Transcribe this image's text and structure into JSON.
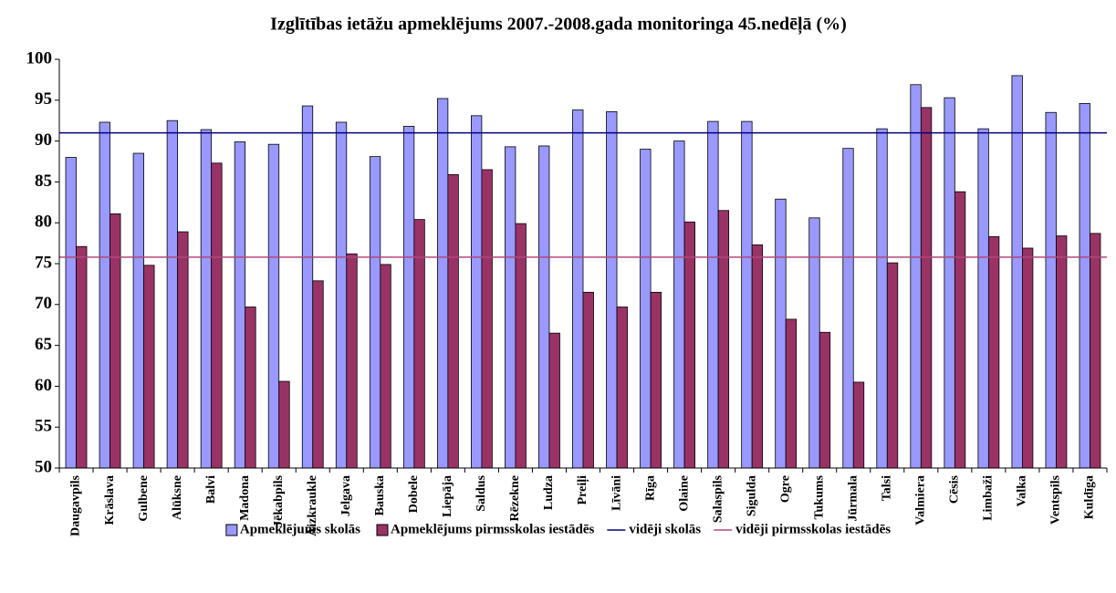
{
  "chart_data": {
    "type": "bar",
    "title": "Izglītības ietāžu apmeklējums 2007.-2008.gada monitoringa 45.nedēļā (%)",
    "categories": [
      "Daugavpils",
      "Krāslava",
      "Gulbene",
      "Alūksne",
      "Balvi",
      "Madona",
      "Jēkabpils",
      "Aizkraukle",
      "Jelgava",
      "Bauska",
      "Dobele",
      "Liepāja",
      "Saldus",
      "Rēzekne",
      "Ludza",
      "Preiļi",
      "Līvāni",
      "Rīga",
      "Olaine",
      "Salaspils",
      "Sigulda",
      "Ogre",
      "Tukums",
      "Jūrmala",
      "Talsi",
      "Valmiera",
      "Cēsis",
      "Limbaži",
      "Valka",
      "Ventspils",
      "Kuldīga"
    ],
    "series": [
      {
        "name": "Apmeklējums skolās",
        "color": "#9999ff",
        "type": "bar",
        "values": [
          88.0,
          92.3,
          88.5,
          92.5,
          91.4,
          89.9,
          89.6,
          94.3,
          92.3,
          88.1,
          91.8,
          95.2,
          93.1,
          89.3,
          89.4,
          93.8,
          93.6,
          89.0,
          90.0,
          92.4,
          92.4,
          82.9,
          80.6,
          89.1,
          91.5,
          96.9,
          95.3,
          91.5,
          98.0,
          93.5,
          94.6
        ]
      },
      {
        "name": "Apmeklējums pirmsskolas iestādēs",
        "color": "#993366",
        "type": "bar",
        "values": [
          77.1,
          81.1,
          74.8,
          78.9,
          87.3,
          69.7,
          60.6,
          72.9,
          76.2,
          74.9,
          80.4,
          85.9,
          86.5,
          79.9,
          66.5,
          71.5,
          69.7,
          71.5,
          80.1,
          81.5,
          77.3,
          68.2,
          66.6,
          60.5,
          75.1,
          94.1,
          83.8,
          78.3,
          76.9,
          78.4,
          78.7
        ]
      },
      {
        "name": "vidēji skolās",
        "color": "#000080",
        "type": "line",
        "values": [
          91,
          91,
          91,
          91,
          91,
          91,
          91,
          91,
          91,
          91,
          91,
          91,
          91,
          91,
          91,
          91,
          91,
          91,
          91,
          91,
          91,
          91,
          91,
          91,
          91,
          91,
          91,
          91,
          91,
          91,
          91
        ]
      },
      {
        "name": "vidēji pirmsskolas iestādēs",
        "color": "#b0487a",
        "type": "line",
        "values": [
          75.8,
          75.8,
          75.8,
          75.8,
          75.8,
          75.8,
          75.8,
          75.8,
          75.8,
          75.8,
          75.8,
          75.8,
          75.8,
          75.8,
          75.8,
          75.8,
          75.8,
          75.8,
          75.8,
          75.8,
          75.8,
          75.8,
          75.8,
          75.8,
          75.8,
          75.8,
          75.8,
          75.8,
          75.8,
          75.8,
          75.8
        ]
      }
    ],
    "ylim": [
      50,
      100
    ],
    "yticks": [
      50,
      55,
      60,
      65,
      70,
      75,
      80,
      85,
      90,
      95,
      100
    ],
    "grid": false,
    "legend": "bottom"
  }
}
